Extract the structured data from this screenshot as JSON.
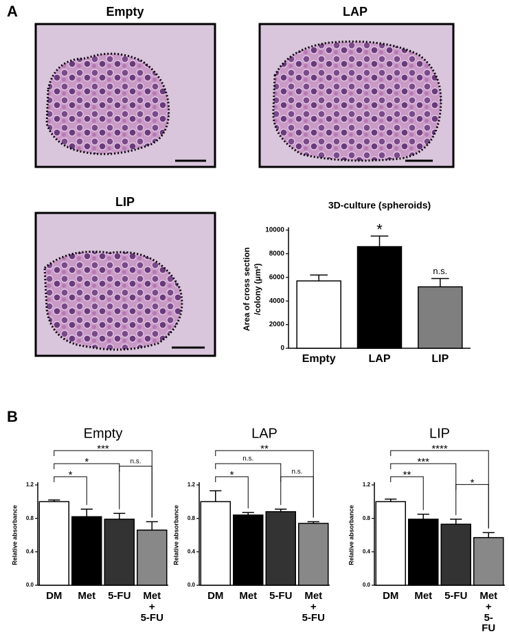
{
  "panel_labels": [
    "A",
    "B"
  ],
  "image_titles": [
    "Empty",
    "LAP",
    "LIP"
  ],
  "chart_data": [
    {
      "type": "bar",
      "title": "3D-culture (spheroids)",
      "y_label": [
        "Area of cross section",
        "/colony (μm²)"
      ],
      "categories": [
        "Empty",
        "LAP",
        "LIP"
      ],
      "values": [
        5700,
        8600,
        5200
      ],
      "errors": [
        500,
        900,
        700
      ],
      "colors": [
        "#ffffff",
        "#000000",
        "#7f7f7f"
      ],
      "ylim": [
        0,
        10000
      ],
      "yticks": [
        0,
        2000,
        4000,
        6000,
        8000,
        10000
      ],
      "annotations": [
        "*",
        "n.s."
      ]
    },
    {
      "type": "bar",
      "title": "Empty",
      "y_label": [
        "Relative absorbance"
      ],
      "categories": [
        "DM",
        "Met",
        "5-FU",
        "Met\n+\n5-FU"
      ],
      "values": [
        1.0,
        0.82,
        0.79,
        0.66
      ],
      "errors": [
        0.02,
        0.09,
        0.07,
        0.1
      ],
      "colors": [
        "#ffffff",
        "#000000",
        "#333333",
        "#888888"
      ],
      "ylim": [
        0,
        1.2
      ],
      "yticks": [
        {
          "value": 0,
          "label": "0.0"
        },
        0.4,
        0.8,
        1.2
      ],
      "annotations": [
        "*",
        "*",
        "***",
        "n.s."
      ]
    },
    {
      "type": "bar",
      "title": "LAP",
      "y_label": [
        "Relative absorbance"
      ],
      "categories": [
        "DM",
        "Met",
        "5-FU",
        "Met\n+\n5-FU"
      ],
      "values": [
        1.0,
        0.84,
        0.88,
        0.74
      ],
      "errors": [
        0.13,
        0.03,
        0.03,
        0.02
      ],
      "colors": [
        "#ffffff",
        "#000000",
        "#333333",
        "#888888"
      ],
      "ylim": [
        0,
        1.2
      ],
      "yticks": [
        {
          "value": 0,
          "label": "0.0"
        },
        0.4,
        0.8,
        1.2
      ],
      "annotations": [
        "*",
        "n.s.",
        "**",
        "n.s."
      ]
    },
    {
      "type": "bar",
      "title": "LIP",
      "y_label": [
        "Relative absorbance"
      ],
      "categories": [
        "DM",
        "Met",
        "5-FU",
        "Met\n+\n5-FU"
      ],
      "values": [
        1.0,
        0.79,
        0.73,
        0.57
      ],
      "errors": [
        0.03,
        0.06,
        0.06,
        0.06
      ],
      "colors": [
        "#ffffff",
        "#000000",
        "#333333",
        "#888888"
      ],
      "ylim": [
        0,
        1.2
      ],
      "yticks": [
        {
          "value": 0,
          "label": "0.0"
        },
        0.4,
        0.8,
        1.2
      ],
      "annotations": [
        "**",
        "***",
        "****",
        "*"
      ]
    }
  ]
}
